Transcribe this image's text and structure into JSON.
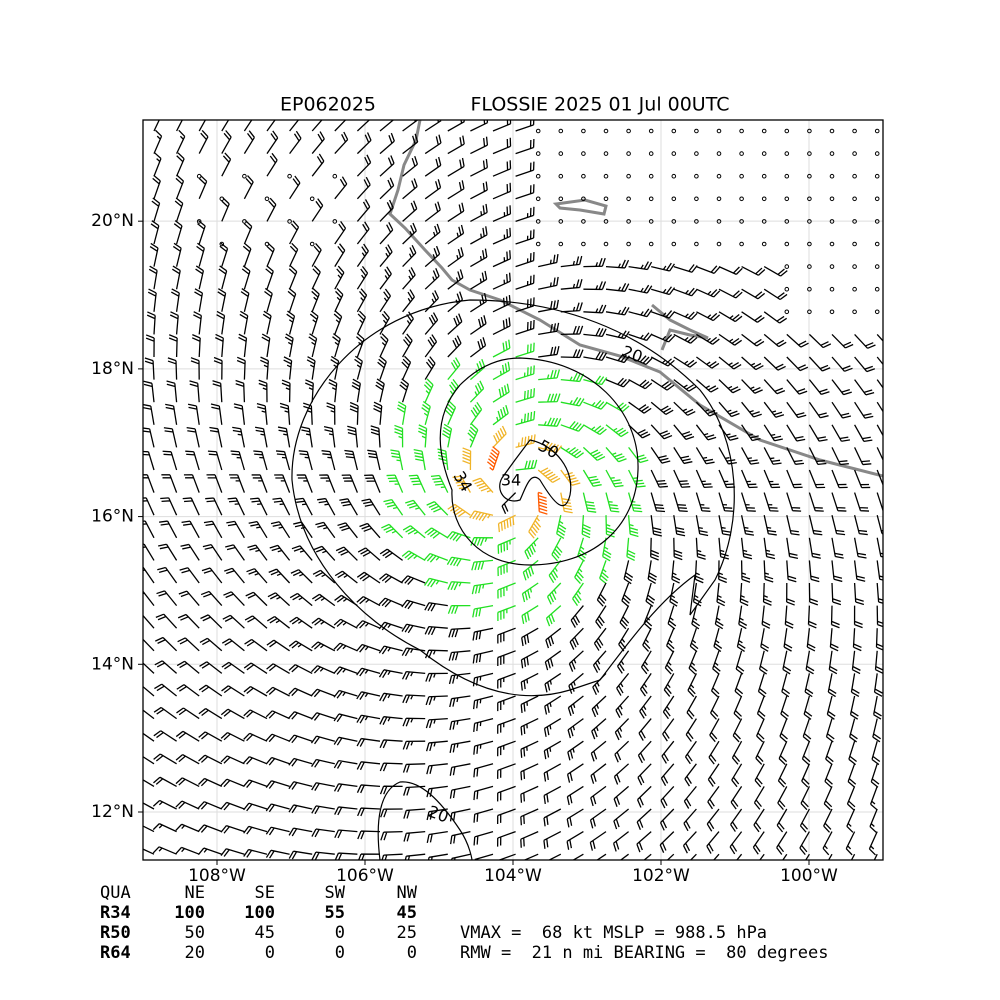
{
  "title_left": "EP062025",
  "title_right": "FLOSSIE 2025 01 Jul 00UTC",
  "map": {
    "xlim": [
      -109,
      -99
    ],
    "ylim": [
      11.35,
      21.37
    ],
    "xticks": [
      {
        "value": -108,
        "label": "108°W"
      },
      {
        "value": -106,
        "label": "106°W"
      },
      {
        "value": -104,
        "label": "104°W"
      },
      {
        "value": -102,
        "label": "102°W"
      },
      {
        "value": -100,
        "label": "100°W"
      }
    ],
    "yticks": [
      {
        "value": 12,
        "label": "12°N"
      },
      {
        "value": 14,
        "label": "14°N"
      },
      {
        "value": 16,
        "label": "16°N"
      },
      {
        "value": 18,
        "label": "18°N"
      },
      {
        "value": 20,
        "label": "20°N"
      }
    ],
    "grid": true,
    "contour_labels": [
      "20",
      "50",
      "34",
      "34",
      "20"
    ]
  },
  "wind_radii": {
    "header": [
      "QUA",
      "NE",
      "SE",
      "SW",
      "NW"
    ],
    "rows": [
      {
        "label": "R34",
        "values": [
          100,
          100,
          55,
          45
        ]
      },
      {
        "label": "R50",
        "values": [
          50,
          45,
          0,
          25
        ]
      },
      {
        "label": "R64",
        "values": [
          20,
          0,
          0,
          0
        ]
      }
    ]
  },
  "stats": [
    "VMAX =  68 kt MSLP = 988.5 hPa",
    "RMW =  21 n mi BEARING =  80 degrees"
  ]
}
